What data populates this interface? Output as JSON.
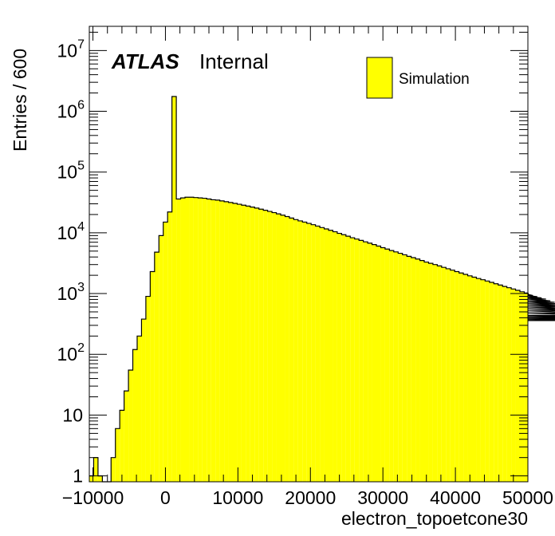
{
  "chart_data": {
    "type": "histogram",
    "title": "",
    "xlabel": "electron_topoetcone30",
    "ylabel": "Entries / 600",
    "xlim": [
      -10500,
      50000
    ],
    "ylim": [
      0.8,
      25000000
    ],
    "yscale": "log",
    "bin_width": 600,
    "x_start": -10500,
    "fill_color": "#ffff00",
    "line_color": "#000000",
    "legend": {
      "label": "Simulation",
      "position": "top-right"
    },
    "label": {
      "experiment": "ATLAS",
      "status": "Internal"
    },
    "x_tick_labels": [
      "−10000",
      "0",
      "10000",
      "20000",
      "30000",
      "40000",
      "50000"
    ],
    "x_tick_values": [
      -10000,
      0,
      10000,
      20000,
      30000,
      40000,
      50000
    ],
    "y_tick_labels": [
      {
        "value": 1,
        "base": "1",
        "exp": ""
      },
      {
        "value": 10,
        "base": "10",
        "exp": ""
      },
      {
        "value": 100,
        "base": "10",
        "exp": "2"
      },
      {
        "value": 1000,
        "base": "10",
        "exp": "3"
      },
      {
        "value": 10000,
        "base": "10",
        "exp": "4"
      },
      {
        "value": 100000,
        "base": "10",
        "exp": "5"
      },
      {
        "value": 1000000,
        "base": "10",
        "exp": "6"
      },
      {
        "value": 10000000,
        "base": "10",
        "exp": "7"
      }
    ],
    "values": [
      1,
      2,
      1,
      0,
      0,
      2,
      6,
      12,
      25,
      55,
      120,
      200,
      380,
      900,
      2300,
      4800,
      9000,
      15000,
      22000,
      1750000,
      36000,
      37500,
      38500,
      38500,
      38000,
      37500,
      37000,
      36000,
      35000,
      34500,
      33500,
      32500,
      31500,
      30500,
      29500,
      28500,
      27500,
      26500,
      25500,
      24500,
      23500,
      22500,
      21500,
      20500,
      19500,
      18500,
      17500,
      16500,
      15700,
      15000,
      14300,
      13600,
      12900,
      12200,
      11600,
      11000,
      10400,
      9800,
      9300,
      8800,
      8300,
      7900,
      7500,
      7100,
      6750,
      6400,
      6050,
      5700,
      5400,
      5100,
      4850,
      4600,
      4350,
      4100,
      3900,
      3700,
      3500,
      3300,
      3150,
      3000,
      2850,
      2700,
      2560,
      2430,
      2300,
      2180,
      2070,
      1960,
      1860,
      1770,
      1690,
      1610,
      1530,
      1450,
      1380,
      1310,
      1250,
      1190,
      1130,
      1070,
      1020,
      970,
      930,
      890,
      850,
      810,
      760,
      720,
      680,
      640,
      600,
      560,
      520,
      480,
      440,
      420,
      400,
      390,
      380,
      370,
      360
    ]
  }
}
